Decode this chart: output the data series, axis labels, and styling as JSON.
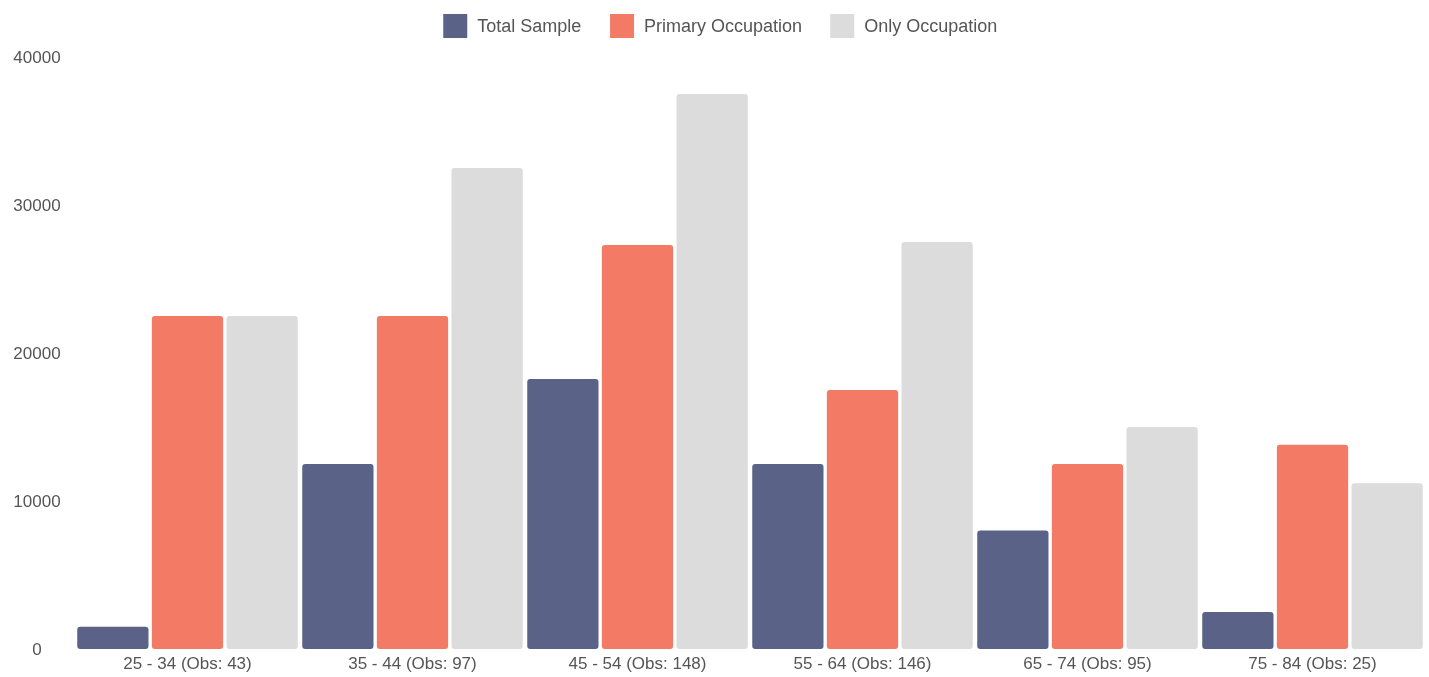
{
  "chart_data": {
    "type": "bar",
    "categories": [
      "25 - 34 (Obs: 43)",
      "35 - 44 (Obs: 97)",
      "45 - 54 (Obs: 148)",
      "55 - 64 (Obs: 146)",
      "65 - 74 (Obs: 95)",
      "75 - 84 (Obs: 25)"
    ],
    "series": [
      {
        "name": "Total Sample",
        "color": "#5a6387",
        "values": [
          1500,
          12500,
          18250,
          12500,
          8000,
          2500
        ]
      },
      {
        "name": "Primary Occupation",
        "color": "#f37b66",
        "values": [
          22500,
          22500,
          27300,
          17500,
          12500,
          13800
        ]
      },
      {
        "name": "Only Occupation",
        "color": "#dcdcdc",
        "values": [
          22500,
          32500,
          37500,
          27500,
          15000,
          11200
        ]
      }
    ],
    "ylim": [
      0,
      40000
    ],
    "yticks": [
      0,
      10000,
      20000,
      30000,
      40000
    ],
    "grid": false,
    "legend": "top"
  }
}
